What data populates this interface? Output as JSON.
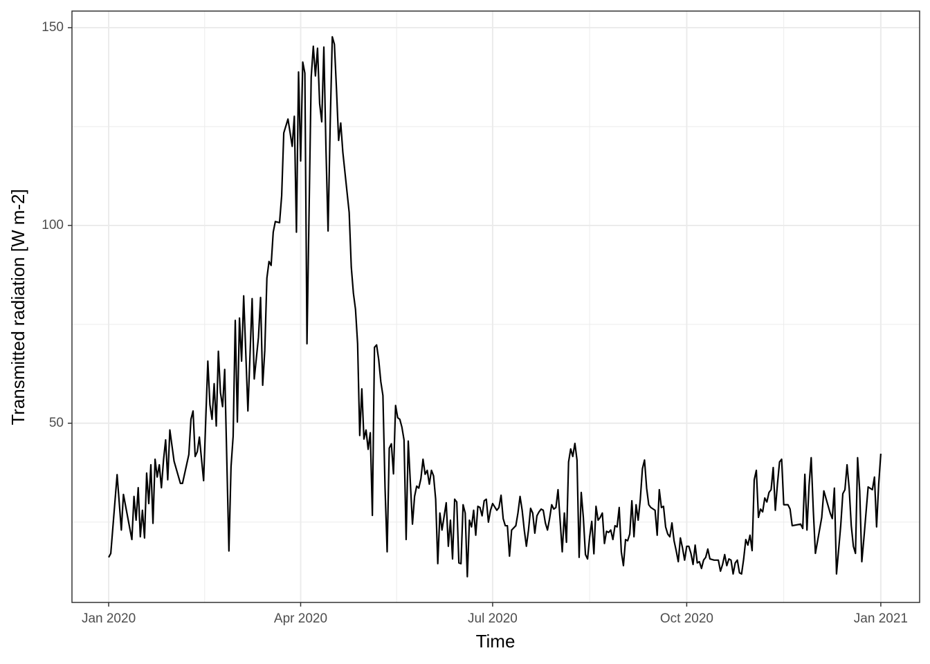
{
  "chart_data": {
    "type": "line",
    "xlabel": "Time",
    "ylabel": "Transmitted radiation [W m-2]",
    "xlim": [
      -17.4,
      384.4
    ],
    "ylim": [
      4.7,
      154.2
    ],
    "xticks": [
      {
        "value": 0,
        "label": "Jan 2020"
      },
      {
        "value": 91,
        "label": "Apr 2020"
      },
      {
        "value": 182,
        "label": "Jul 2020"
      },
      {
        "value": 274,
        "label": "Oct 2020"
      },
      {
        "value": 366,
        "label": "Jan 2021"
      }
    ],
    "yticks": [
      50,
      100,
      150
    ],
    "xminor": [
      45.5,
      136.5,
      228,
      320
    ],
    "yminor": [
      25,
      75,
      125
    ],
    "grid": true,
    "series": [
      {
        "name": "Transmitted radiation",
        "color": "#000000",
        "x": [
          0,
          1,
          4,
          6,
          7,
          11,
          12,
          13,
          14,
          15,
          16,
          17,
          18,
          19,
          20,
          21,
          22,
          23,
          24,
          25,
          26,
          27,
          28,
          29,
          31,
          34,
          35,
          38,
          39,
          40,
          41,
          42,
          43,
          45,
          47,
          48,
          49,
          50,
          51,
          52,
          53,
          54,
          55,
          57,
          58,
          59,
          60,
          61,
          62,
          63,
          64,
          66,
          68,
          69,
          71,
          72,
          73,
          74,
          75,
          76,
          77,
          78,
          79,
          81,
          82,
          83,
          85,
          87,
          88,
          89,
          90,
          91,
          92,
          93,
          94,
          96,
          97,
          98,
          99,
          100,
          101,
          102,
          103,
          104,
          105,
          106,
          107,
          108,
          109,
          110,
          111,
          114,
          115,
          116,
          117,
          118,
          119,
          120,
          121,
          122,
          123,
          124,
          125,
          126,
          127,
          128,
          129,
          130,
          131,
          132,
          133,
          134,
          135,
          136,
          137,
          138,
          139,
          140,
          141,
          142,
          144,
          145,
          146,
          147,
          148,
          149,
          150,
          151,
          152,
          153,
          154,
          155,
          156,
          157,
          158,
          160,
          161,
          162,
          163,
          164,
          165,
          166,
          167,
          168,
          169,
          170,
          171,
          172,
          173,
          174,
          175,
          176,
          177,
          178,
          179,
          180,
          181,
          182,
          184,
          185,
          186,
          187,
          188,
          189,
          190,
          191,
          193,
          194,
          195,
          196,
          197,
          198,
          199,
          200,
          201,
          202,
          203,
          204,
          205,
          206,
          207,
          208,
          209,
          210,
          211,
          212,
          213,
          215,
          216,
          217,
          218,
          219,
          220,
          221,
          222,
          223,
          224,
          225,
          226,
          227,
          228,
          229,
          230,
          231,
          232,
          233,
          234,
          235,
          236,
          237,
          238,
          239,
          240,
          241,
          242,
          243,
          244,
          245,
          246,
          247,
          248,
          249,
          250,
          251,
          252,
          253,
          254,
          255,
          256,
          257,
          259,
          260,
          261,
          262,
          263,
          264,
          265,
          266,
          267,
          268,
          269,
          270,
          271,
          272,
          273,
          274,
          275,
          276,
          277,
          278,
          279,
          280,
          281,
          282,
          283,
          284,
          285,
          287,
          288,
          289,
          290,
          291,
          292,
          293,
          294,
          295,
          296,
          297,
          298,
          299,
          300,
          301,
          302,
          303,
          304,
          305,
          306,
          307,
          308,
          309,
          310,
          311,
          312,
          313,
          314,
          315,
          316,
          317,
          318,
          319,
          320,
          322,
          323,
          324,
          328,
          329,
          330,
          331,
          332,
          333,
          334,
          335,
          338,
          339,
          342,
          343,
          344,
          345,
          347,
          348,
          349,
          350,
          351,
          352,
          353,
          354,
          355,
          356,
          357,
          358,
          360,
          362,
          363,
          364,
          365,
          366
        ],
        "values": [
          16.1,
          17.1,
          37,
          23,
          32,
          20.6,
          31.5,
          25.5,
          33.7,
          21.3,
          28,
          21,
          37.4,
          29.7,
          39.5,
          24.7,
          40.9,
          36.4,
          39.5,
          33.7,
          40.7,
          45.8,
          35.7,
          48.3,
          40.4,
          34.8,
          34.8,
          42.1,
          51,
          53.1,
          41.6,
          42.8,
          46.5,
          35.5,
          65.7,
          54.7,
          51,
          60,
          49.3,
          68.2,
          57.7,
          54.2,
          63.6,
          17.7,
          39,
          46.7,
          76,
          50.3,
          76.6,
          65.7,
          82.2,
          53.1,
          81.5,
          61.2,
          71.7,
          81.8,
          59.6,
          68.4,
          86.7,
          90.9,
          89.9,
          98.3,
          101,
          100.7,
          107.5,
          123.4,
          126.9,
          120,
          127.6,
          98.3,
          138.8,
          116.3,
          141.3,
          138.5,
          70.1,
          137.5,
          145.3,
          137.8,
          144.8,
          130.8,
          126.2,
          145.1,
          119.4,
          98.6,
          125.5,
          147.7,
          145.8,
          134.3,
          121.5,
          125.9,
          118.5,
          103.3,
          89.5,
          82.9,
          78.8,
          70.1,
          46.9,
          58.7,
          46,
          48.3,
          43.4,
          47.6,
          26.7,
          69.2,
          69.8,
          66.1,
          60.5,
          57,
          33.7,
          17.5,
          43.7,
          44.8,
          37.2,
          54.5,
          51.4,
          51,
          49,
          45.8,
          20.6,
          45.5,
          24.5,
          31.5,
          34.1,
          33.6,
          36,
          40.9,
          37.1,
          38.1,
          34.6,
          38.1,
          36.7,
          30.8,
          14.5,
          27.3,
          23,
          29.9,
          18.9,
          25.5,
          15.7,
          30.8,
          30.1,
          14.7,
          14.5,
          29.4,
          27.3,
          11.2,
          25.5,
          23.8,
          28,
          21.7,
          29,
          28.7,
          26.6,
          30.4,
          30.8,
          25,
          28,
          29.7,
          28,
          28.7,
          31.8,
          25.9,
          24.1,
          24.1,
          16.4,
          23,
          24.1,
          27.3,
          31.5,
          28,
          23,
          18.9,
          23,
          28.5,
          27.3,
          22.2,
          26.6,
          27.6,
          28.3,
          28,
          24.8,
          23,
          25.9,
          29.4,
          28.3,
          28.7,
          33.2,
          17.5,
          27.3,
          19.9,
          40.2,
          43.5,
          41.6,
          44.9,
          40.7,
          16.1,
          32.5,
          26.2,
          16.8,
          15.7,
          21.3,
          25.2,
          17,
          29,
          25.5,
          26.2,
          27.3,
          19.6,
          22.7,
          22.4,
          23,
          20.6,
          24.1,
          23.8,
          28.7,
          17.5,
          14,
          20.6,
          20.3,
          22,
          30.4,
          21.3,
          29.4,
          25.5,
          30.8,
          38.5,
          40.7,
          33.6,
          29.4,
          28.7,
          28,
          21.7,
          33.2,
          28.7,
          29,
          23.8,
          22,
          21.3,
          24.8,
          20.3,
          17.8,
          15,
          21,
          18.5,
          15.4,
          18.9,
          18.9,
          17.1,
          14.3,
          19.2,
          14.7,
          15,
          13.3,
          15.4,
          16.1,
          18.2,
          15.7,
          15.4,
          15.4,
          15.4,
          12.6,
          14.3,
          16.8,
          14,
          15.7,
          15.4,
          11.9,
          14.7,
          15.4,
          12.2,
          11.9,
          15.7,
          20.6,
          19.2,
          21.7,
          17.8,
          35.7,
          38.1,
          26.2,
          28.3,
          27.6,
          31.1,
          30.1,
          32.5,
          33.2,
          38.8,
          28,
          34.6,
          40.2,
          40.9,
          29.4,
          29.4,
          28.3,
          24.1,
          24.5,
          23.4,
          37.1,
          23,
          34.3,
          41.3,
          28,
          17.1,
          26.2,
          32.9,
          27.3,
          25.9,
          33.6,
          11.9,
          24.1,
          32.2,
          33.2,
          39.5,
          33.6,
          24.1,
          18.9,
          17.1,
          41.3,
          32.9,
          15,
          21,
          33.9,
          33.2,
          36.4,
          23.8,
          34.6,
          42.3
        ]
      }
    ]
  }
}
